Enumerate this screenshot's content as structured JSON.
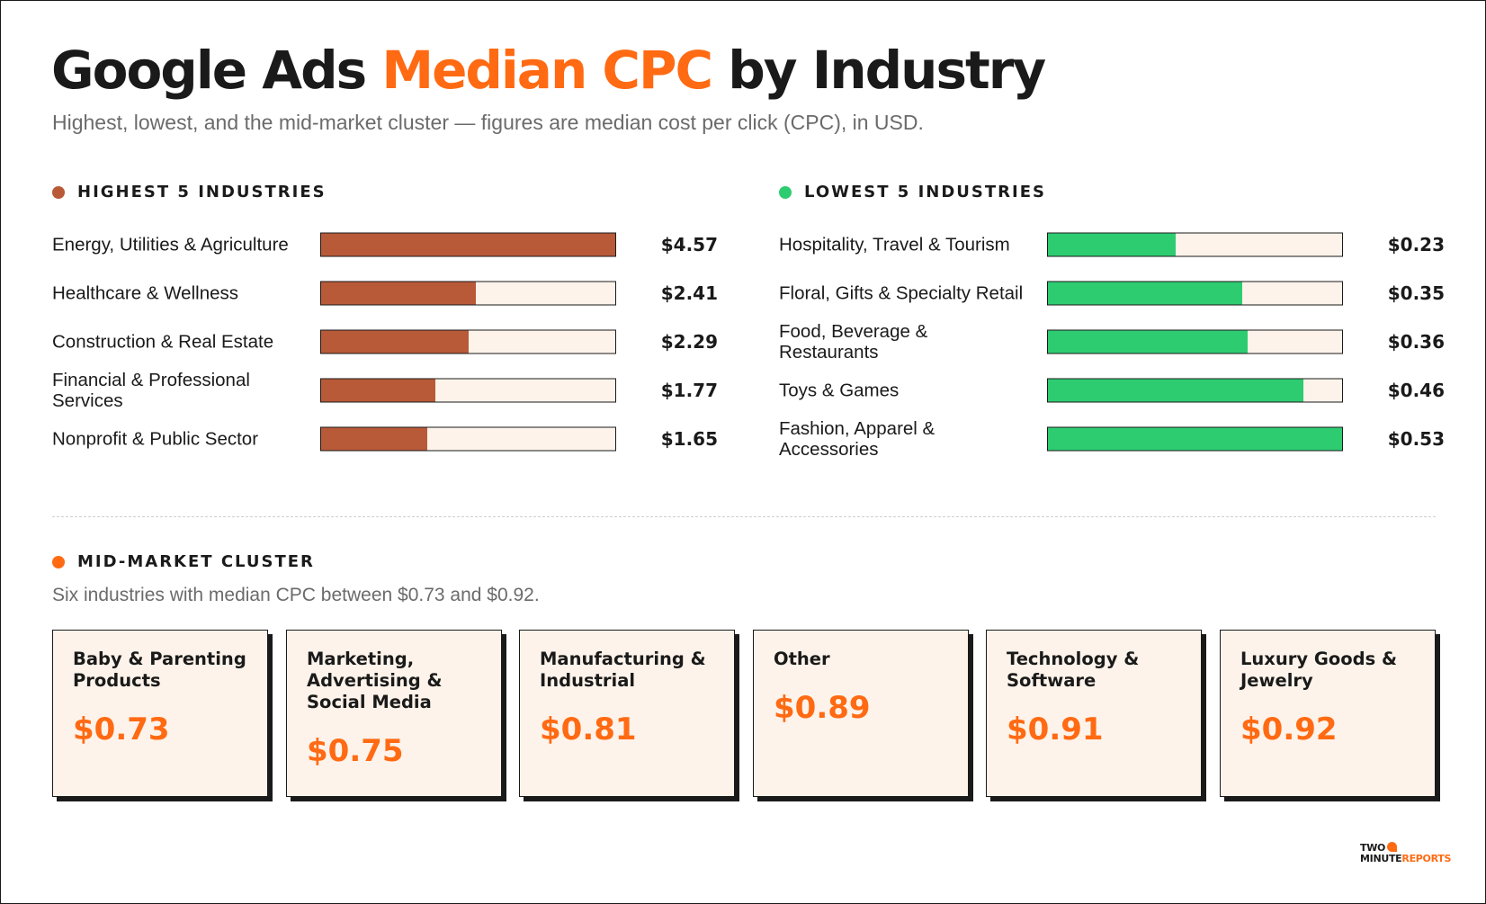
{
  "header": {
    "title_pre": "Google Ads ",
    "title_accent": "Median CPC",
    "title_post": " by Industry",
    "subtitle": "Highest, lowest, and the mid-market cluster — figures are median cost per click (CPC), in USD."
  },
  "colors": {
    "accent": "#ff6a13",
    "highest": "#b85a38",
    "lowest": "#2ecc71",
    "track": "#fdf3ea",
    "ink": "#1a1a1a"
  },
  "chart_data": [
    {
      "type": "bar",
      "orientation": "horizontal",
      "title": "HIGHEST 5 INDUSTRIES",
      "categories": [
        "Energy, Utilities & Agriculture",
        "Healthcare & Wellness",
        "Construction & Real Estate",
        "Financial & Professional Services",
        "Nonprofit & Public Sector"
      ],
      "values": [
        4.57,
        2.41,
        2.29,
        1.77,
        1.65
      ],
      "value_labels": [
        "$4.57",
        "$2.41",
        "$2.29",
        "$1.77",
        "$1.65"
      ],
      "xlim": [
        0,
        4.57
      ]
    },
    {
      "type": "bar",
      "orientation": "horizontal",
      "title": "LOWEST 5 INDUSTRIES",
      "categories": [
        "Hospitality, Travel & Tourism",
        "Floral, Gifts & Specialty Retail",
        "Food, Beverage & Restaurants",
        "Toys & Games",
        "Fashion, Apparel & Accessories"
      ],
      "values": [
        0.23,
        0.35,
        0.36,
        0.46,
        0.53
      ],
      "value_labels": [
        "$0.23",
        "$0.35",
        "$0.36",
        "$0.46",
        "$0.53"
      ],
      "xlim": [
        0,
        0.53
      ]
    }
  ],
  "mid_market": {
    "title": "MID-MARKET CLUSTER",
    "subtitle": "Six industries with median CPC between $0.73 and $0.92.",
    "cards": [
      {
        "label": "Baby & Parenting Products",
        "value": "$0.73"
      },
      {
        "label": "Marketing, Advertising & Social Media",
        "value": "$0.75"
      },
      {
        "label": "Manufacturing & Industrial",
        "value": "$0.81"
      },
      {
        "label": "Other",
        "value": "$0.89"
      },
      {
        "label": "Technology & Software",
        "value": "$0.91"
      },
      {
        "label": "Luxury Goods & Jewelry",
        "value": "$0.92"
      }
    ]
  },
  "logo": {
    "line1": "TWO",
    "line2a": "MINUTE",
    "line2b": "REPORTS"
  }
}
